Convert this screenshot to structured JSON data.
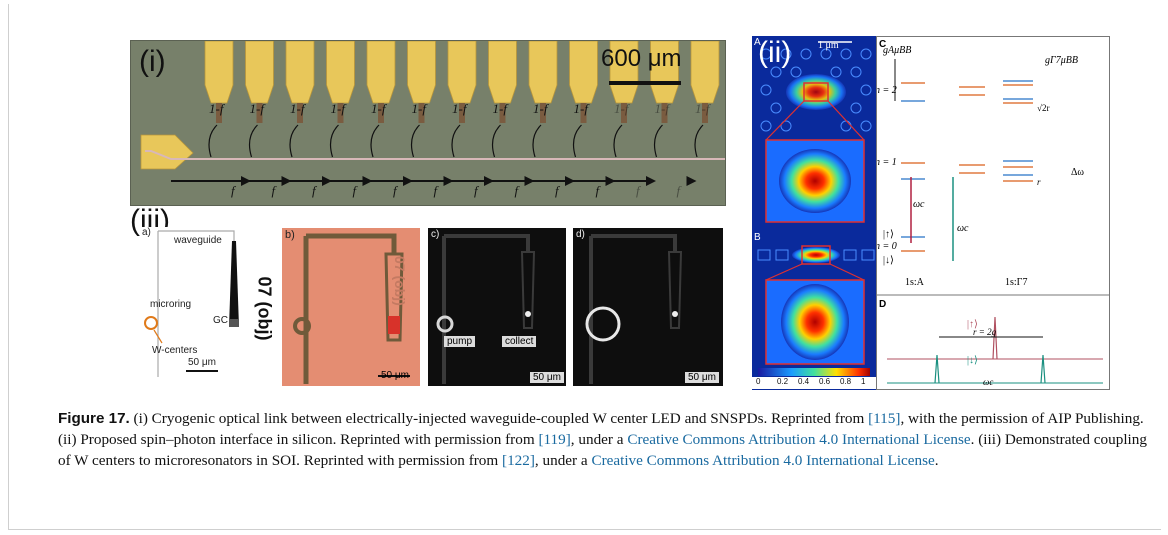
{
  "figure": {
    "panel_i": {
      "label": "(i)",
      "scale_label": "600 μm",
      "split_labels": [
        "1-f",
        "1-f",
        "1-f",
        "1-f",
        "1-f",
        "1-f",
        "1-f",
        "1-f",
        "1-f",
        "1-f",
        "1-f",
        "1-f",
        "1-f"
      ],
      "transmit_labels": [
        "f",
        "f",
        "f",
        "f",
        "f",
        "f",
        "f",
        "f",
        "f",
        "f",
        "f",
        "f"
      ]
    },
    "panel_ii": {
      "label": "(ii)",
      "sub_a": "A",
      "sub_b": "B",
      "sub_c": "C",
      "sub_d": "D",
      "scale_label": "1 μm",
      "colorbar_ticks": [
        "0",
        "0.2",
        "0.4",
        "0.6",
        "0.8",
        "1"
      ],
      "energy_labels": {
        "gA": "gAμBB",
        "gG": "gΓ7μBB",
        "n2": "n = 2",
        "n1": "n = 1",
        "n0": "n = 0",
        "sqrt2r": "√2r",
        "r": "r",
        "delta_omega": "Δω",
        "omega_c1": "ωc",
        "omega_c2": "ωc",
        "up": "|↑⟩",
        "down": "|↓⟩",
        "level_A": "1s:A",
        "level_G": "1s:Γ7",
        "d_up": "|↑⟩",
        "d_down": "|↓⟩",
        "d_width": "r = 2g",
        "d_omega": "ωc"
      }
    },
    "panel_iii": {
      "label": "(iii)",
      "a_tag": "a)",
      "a_waveguide": "waveguide",
      "a_microring": "microring",
      "a_gc": "GC",
      "a_wcenters": "W-centers",
      "a_scale": "50 μm",
      "side_text": "07 (obj)",
      "b_tag": "b)",
      "b_scale": "50 μm",
      "c_tag": "c)",
      "c_pump": "pump",
      "c_collect": "collect",
      "c_scale": "50 μm",
      "d_tag": "d)",
      "d_scale": "50 μm"
    }
  },
  "caption": {
    "prefix": "Figure 17.",
    "t1": " (i) Cryogenic optical link between electrically-injected waveguide-coupled W center LED and SNSPDs. Reprinted from ",
    "ref1": "[115]",
    "t2": ", with the permission of AIP Publishing. (ii) Proposed spin–photon interface in silicon. Reprinted with permission from ",
    "ref2": "[119]",
    "t3": ", under a ",
    "link1": "Creative Commons Attribution 4.0 International License",
    "t4": ". (iii) Demonstrated coupling of W centers to microresonators in SOI. Reprinted with permission from ",
    "ref3": "[122]",
    "t5": ", under a ",
    "link2": "Creative Commons Attribution 4.0 International License",
    "t6": "."
  },
  "colors": {
    "gold": "#e8c75a",
    "link": "#1a6aa0",
    "chip": "#77806a"
  }
}
